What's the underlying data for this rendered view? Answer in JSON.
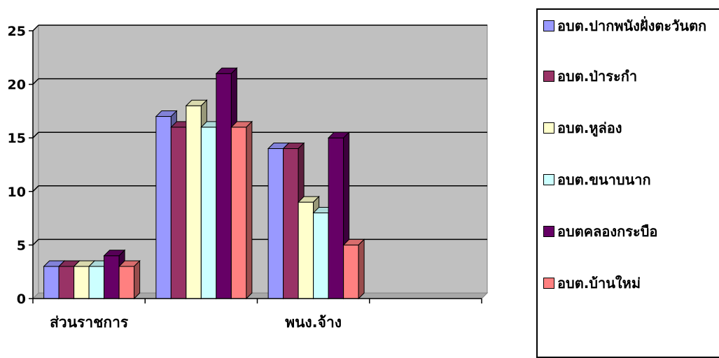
{
  "chart_data": {
    "type": "bar",
    "title": "",
    "xlabel": "",
    "ylabel": "",
    "ylim": [
      0,
      25
    ],
    "yticks": [
      0,
      5,
      10,
      15,
      20,
      25
    ],
    "categories": [
      "ส่วนราชการ",
      "",
      "พนง.จ้าง",
      ""
    ],
    "series": [
      {
        "name": "อบต.ปากพนังฝั่งตะวันตก",
        "color": "#9999ff",
        "values": [
          3,
          17,
          14,
          null
        ]
      },
      {
        "name": "อบต.ป่าระกำ",
        "color": "#993366",
        "values": [
          3,
          16,
          14,
          null
        ]
      },
      {
        "name": "อบต.หูล่อง",
        "color": "#ffffcc",
        "values": [
          3,
          18,
          9,
          null
        ]
      },
      {
        "name": "อบต.ขนาบนาก",
        "color": "#ccffff",
        "values": [
          3,
          16,
          8,
          null
        ]
      },
      {
        "name": "อบตคลองกระบือ",
        "color": "#660066",
        "values": [
          4,
          21,
          15,
          null
        ]
      },
      {
        "name": "อบต.บ้านใหม่",
        "color": "#ff8080",
        "values": [
          3,
          16,
          5,
          null
        ]
      }
    ],
    "grid": true,
    "legend_position": "right",
    "style": "3d-clustered-column",
    "plot_background": "#c0c0c0"
  }
}
